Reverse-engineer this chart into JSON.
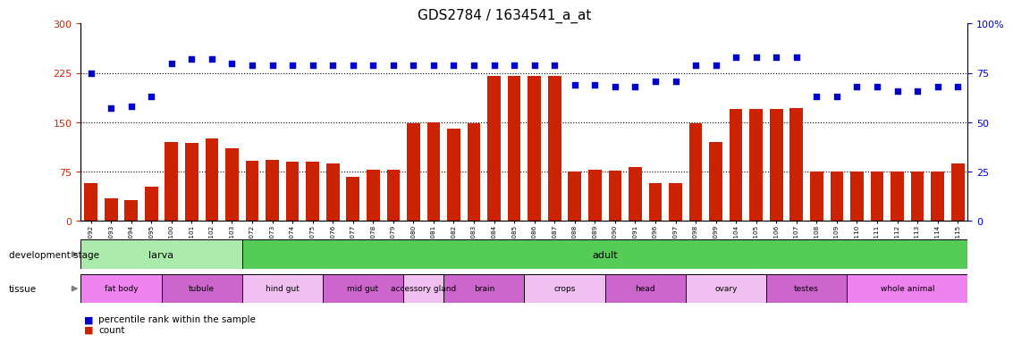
{
  "title": "GDS2784 / 1634541_a_at",
  "samples": [
    "GSM188092",
    "GSM188093",
    "GSM188094",
    "GSM188095",
    "GSM188100",
    "GSM188101",
    "GSM188102",
    "GSM188103",
    "GSM188072",
    "GSM188073",
    "GSM188074",
    "GSM188075",
    "GSM188076",
    "GSM188077",
    "GSM188078",
    "GSM188079",
    "GSM188080",
    "GSM188081",
    "GSM188082",
    "GSM188083",
    "GSM188084",
    "GSM188085",
    "GSM188086",
    "GSM188087",
    "GSM188088",
    "GSM188089",
    "GSM188090",
    "GSM188091",
    "GSM188096",
    "GSM188097",
    "GSM188098",
    "GSM188099",
    "GSM188104",
    "GSM188105",
    "GSM188106",
    "GSM188107",
    "GSM188108",
    "GSM188109",
    "GSM188110",
    "GSM188111",
    "GSM188112",
    "GSM188113",
    "GSM188114",
    "GSM188115"
  ],
  "counts": [
    58,
    35,
    32,
    52,
    120,
    118,
    125,
    110,
    92,
    93,
    90,
    90,
    87,
    67,
    78,
    78,
    148,
    150,
    140,
    148,
    220,
    220,
    220,
    220,
    75,
    78,
    76,
    82,
    57,
    57,
    148,
    120,
    170,
    170,
    170,
    172,
    75,
    75,
    75,
    75,
    75,
    75,
    75,
    88
  ],
  "percentile": [
    75,
    57,
    58,
    63,
    80,
    82,
    82,
    80,
    79,
    79,
    79,
    79,
    79,
    79,
    79,
    79,
    79,
    79,
    79,
    79,
    79,
    79,
    79,
    79,
    69,
    69,
    68,
    68,
    71,
    71,
    79,
    79,
    83,
    83,
    83,
    83,
    63,
    63,
    68,
    68,
    66,
    66,
    68,
    68
  ],
  "dev_stage_segments": [
    {
      "label": "larva",
      "start": 0,
      "end": 8,
      "color": "#aaeaaa"
    },
    {
      "label": "adult",
      "start": 8,
      "end": 44,
      "color": "#55cc55"
    }
  ],
  "tissue_segments": [
    {
      "label": "fat body",
      "start": 0,
      "end": 4,
      "color": "#ee82ee"
    },
    {
      "label": "tubule",
      "start": 4,
      "end": 8,
      "color": "#cc66cc"
    },
    {
      "label": "hind gut",
      "start": 8,
      "end": 12,
      "color": "#f0c0f0"
    },
    {
      "label": "mid gut",
      "start": 12,
      "end": 16,
      "color": "#cc66cc"
    },
    {
      "label": "accessory gland",
      "start": 16,
      "end": 18,
      "color": "#f0c0f0"
    },
    {
      "label": "brain",
      "start": 18,
      "end": 22,
      "color": "#cc66cc"
    },
    {
      "label": "crops",
      "start": 22,
      "end": 26,
      "color": "#f0c0f0"
    },
    {
      "label": "head",
      "start": 26,
      "end": 30,
      "color": "#cc66cc"
    },
    {
      "label": "ovary",
      "start": 30,
      "end": 34,
      "color": "#f0c0f0"
    },
    {
      "label": "testes",
      "start": 34,
      "end": 38,
      "color": "#cc66cc"
    },
    {
      "label": "whole animal",
      "start": 38,
      "end": 44,
      "color": "#ee82ee"
    }
  ],
  "left_yticks": [
    0,
    75,
    150,
    225,
    300
  ],
  "right_yticks": [
    0,
    25,
    50,
    75,
    100
  ],
  "right_ytick_labels": [
    "0",
    "25",
    "50",
    "75",
    "100%"
  ],
  "bar_color": "#cc2200",
  "dot_color": "#0000cc",
  "title_fontsize": 11,
  "axis_color_left": "#cc2200",
  "axis_color_right": "#0000cc",
  "bg": "#ffffff"
}
